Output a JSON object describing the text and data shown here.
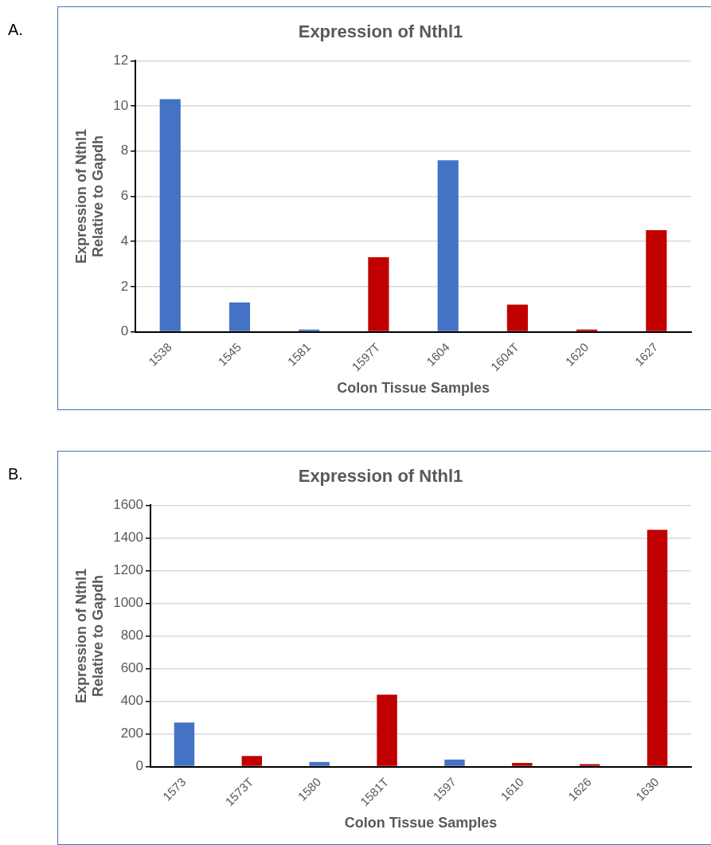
{
  "chart_data": [
    {
      "type": "bar",
      "title": "Expression of Nthl1",
      "xlabel": "Colon Tissue Samples",
      "ylabel": "Expression of Nthl1 Relative to Gapdh",
      "categories": [
        "1538",
        "1545",
        "1581",
        "1597T",
        "1604",
        "1604T",
        "1620",
        "1627"
      ],
      "values": [
        10.3,
        1.3,
        0.1,
        3.3,
        7.6,
        1.2,
        0.1,
        4.5
      ],
      "colors": [
        "#4472c4",
        "#4472c4",
        "#4472c4",
        "#c00000",
        "#4472c4",
        "#c00000",
        "#c00000",
        "#c00000"
      ],
      "ylim": [
        0,
        12
      ],
      "yticks": [
        0,
        2,
        4,
        6,
        8,
        10,
        12
      ],
      "grid": "y",
      "legend": false,
      "annotations": [
        "A."
      ]
    },
    {
      "type": "bar",
      "title": "Expression of Nthl1",
      "xlabel": "Colon Tissue Samples",
      "ylabel": "Expression of Nthl1 Relative to Gapdh",
      "categories": [
        "1573",
        "1573T",
        "1580",
        "1581T",
        "1597",
        "1610",
        "1626",
        "1630"
      ],
      "values": [
        270,
        65,
        28,
        440,
        43,
        23,
        15,
        1450
      ],
      "colors": [
        "#4472c4",
        "#c00000",
        "#4472c4",
        "#c00000",
        "#4472c4",
        "#c00000",
        "#c00000",
        "#c00000"
      ],
      "ylim": [
        0,
        1600
      ],
      "yticks": [
        0,
        200,
        400,
        600,
        800,
        1000,
        1200,
        1400,
        1600
      ],
      "grid": "y",
      "legend": false,
      "annotations": [
        "B."
      ]
    }
  ]
}
